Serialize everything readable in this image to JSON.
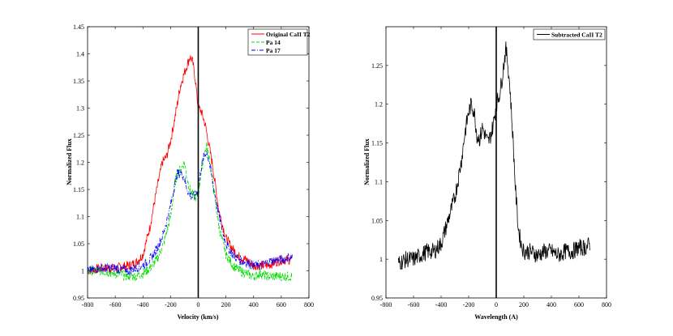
{
  "chart_data": [
    {
      "type": "line",
      "title": "",
      "xlabel": "Velocity (km/s)",
      "ylabel": "Normalized Flux",
      "xlim": [
        -800,
        800
      ],
      "ylim": [
        0.95,
        1.45
      ],
      "xticks": [
        -800,
        -600,
        -400,
        -200,
        0,
        200,
        400,
        600,
        800
      ],
      "yticks": [
        0.95,
        1,
        1.05,
        1.1,
        1.15,
        1.2,
        1.25,
        1.3,
        1.35,
        1.4,
        1.45
      ],
      "xtick_labels": [
        "-800",
        "-600",
        "-400",
        "-200",
        "0",
        "200",
        "400",
        "600",
        "800"
      ],
      "ytick_labels": [
        "0.95",
        "1",
        "1.05",
        "1.1",
        "1.15",
        "1.2",
        "1.25",
        "1.3",
        "1.35",
        "1.4",
        "1.45"
      ],
      "reference_line_x": 0,
      "legend_position": "top-right",
      "series": [
        {
          "name": "Original CaII T2",
          "color": "#ff0000",
          "style": "solid",
          "x": [
            -800,
            -700,
            -600,
            -500,
            -450,
            -400,
            -350,
            -300,
            -260,
            -230,
            -200,
            -170,
            -130,
            -100,
            -80,
            -60,
            -40,
            -20,
            0,
            20,
            50,
            100,
            150,
            200,
            250,
            300,
            350,
            400,
            450,
            500,
            550,
            600,
            650,
            680
          ],
          "y": [
            1.0,
            1.005,
            1.005,
            1.01,
            1.015,
            1.03,
            1.08,
            1.15,
            1.2,
            1.21,
            1.24,
            1.28,
            1.34,
            1.365,
            1.38,
            1.395,
            1.385,
            1.35,
            1.3,
            1.295,
            1.27,
            1.2,
            1.11,
            1.06,
            1.04,
            1.025,
            1.02,
            1.01,
            1.01,
            1.01,
            1.015,
            1.02,
            1.02,
            1.02
          ]
        },
        {
          "name": "Pa 14",
          "color": "#00dd00",
          "style": "dashed",
          "x": [
            -800,
            -700,
            -600,
            -500,
            -450,
            -400,
            -350,
            -300,
            -250,
            -200,
            -170,
            -150,
            -120,
            -100,
            -80,
            -60,
            -40,
            -20,
            0,
            20,
            40,
            60,
            80,
            100,
            150,
            200,
            250,
            300,
            350,
            400,
            450,
            500,
            550,
            600,
            650,
            680
          ],
          "y": [
            1.0,
            1.0,
            0.995,
            0.99,
            0.99,
            0.995,
            1.005,
            1.02,
            1.05,
            1.1,
            1.16,
            1.18,
            1.19,
            1.2,
            1.17,
            1.15,
            1.14,
            1.135,
            1.14,
            1.18,
            1.21,
            1.23,
            1.21,
            1.17,
            1.08,
            1.03,
            1.01,
            1.0,
            0.995,
            0.99,
            0.995,
            0.99,
            0.99,
            0.99,
            0.99,
            0.99
          ]
        },
        {
          "name": "Pa 17",
          "color": "#0000ff",
          "style": "dashdot",
          "x": [
            -800,
            -700,
            -600,
            -500,
            -450,
            -400,
            -350,
            -300,
            -250,
            -200,
            -170,
            -150,
            -120,
            -100,
            -80,
            -60,
            -40,
            -20,
            0,
            20,
            40,
            60,
            80,
            100,
            150,
            200,
            250,
            300,
            350,
            400,
            450,
            500,
            550,
            600,
            650,
            680
          ],
          "y": [
            1.0,
            1.005,
            1.005,
            1.0,
            1.005,
            1.01,
            1.02,
            1.04,
            1.07,
            1.12,
            1.16,
            1.18,
            1.18,
            1.17,
            1.15,
            1.14,
            1.135,
            1.14,
            1.15,
            1.19,
            1.21,
            1.22,
            1.2,
            1.17,
            1.1,
            1.05,
            1.03,
            1.02,
            1.015,
            1.01,
            1.01,
            1.015,
            1.02,
            1.02,
            1.025,
            1.025
          ]
        }
      ]
    },
    {
      "type": "line",
      "title": "",
      "xlabel": "Wavelength (A)",
      "ylabel": "Normalized Flux",
      "xlim": [
        -800,
        800
      ],
      "ylim": [
        0.95,
        1.3
      ],
      "xticks": [
        -800,
        -600,
        -400,
        -200,
        0,
        200,
        400,
        600,
        800
      ],
      "yticks": [
        0.95,
        1,
        1.05,
        1.1,
        1.15,
        1.2,
        1.25
      ],
      "xtick_labels": [
        "-800",
        "-600",
        "-400",
        "-200",
        "0",
        "200",
        "400",
        "600",
        "800"
      ],
      "ytick_labels": [
        "0.95",
        "1",
        "1.05",
        "1.1",
        "1.15",
        "1.2",
        "1.25"
      ],
      "reference_line_x": 0,
      "legend_position": "top-right",
      "series": [
        {
          "name": "Subtracted CaII T2",
          "color": "#000000",
          "style": "solid",
          "x": [
            -710,
            -650,
            -600,
            -550,
            -500,
            -450,
            -400,
            -350,
            -300,
            -270,
            -250,
            -230,
            -200,
            -180,
            -160,
            -140,
            -120,
            -100,
            -80,
            -60,
            -40,
            -20,
            0,
            20,
            40,
            60,
            70,
            80,
            100,
            120,
            140,
            160,
            180,
            200,
            250,
            300,
            350,
            400,
            450,
            500,
            550,
            600,
            650,
            680
          ],
          "y": [
            0.995,
            1.0,
            1.0,
            1.005,
            1.01,
            1.01,
            1.02,
            1.05,
            1.08,
            1.11,
            1.13,
            1.16,
            1.19,
            1.2,
            1.19,
            1.16,
            1.155,
            1.17,
            1.16,
            1.15,
            1.16,
            1.175,
            1.2,
            1.21,
            1.23,
            1.26,
            1.27,
            1.26,
            1.22,
            1.16,
            1.09,
            1.04,
            1.02,
            1.01,
            1.01,
            1.005,
            1.01,
            1.01,
            1.005,
            1.01,
            1.01,
            1.015,
            1.015,
            1.02
          ]
        }
      ]
    }
  ]
}
